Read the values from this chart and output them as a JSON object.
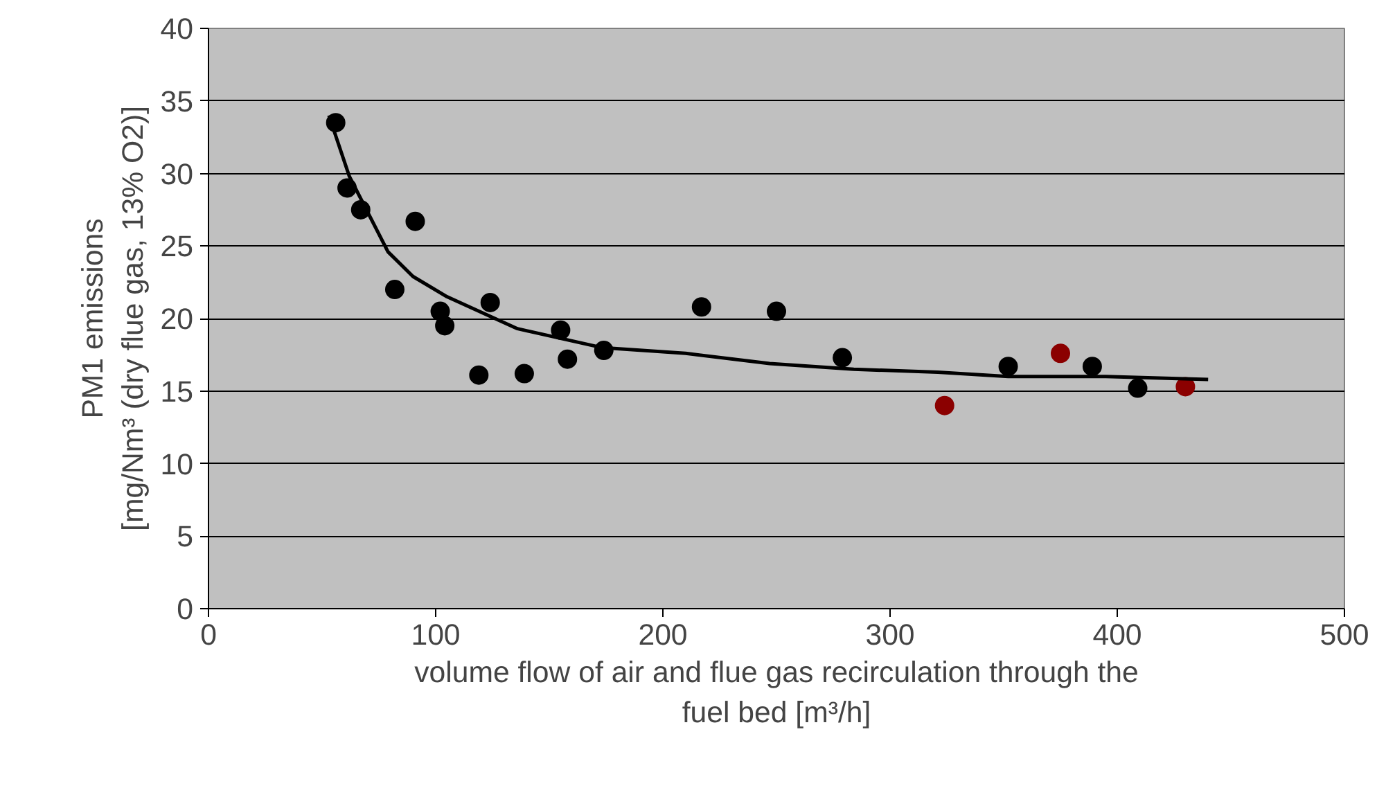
{
  "chart_data": {
    "type": "scatter",
    "xlabel": "volume flow of air and flue gas recirculation through the\nfuel bed [m³/h]",
    "ylabel": "PM1 emissions\n[mg/Nm³ (dry flue gas, 13% O2)]",
    "xlim": [
      0,
      500
    ],
    "ylim": [
      0,
      40
    ],
    "xticks": [
      0,
      100,
      200,
      300,
      400,
      500
    ],
    "yticks": [
      0,
      5,
      10,
      15,
      20,
      25,
      30,
      35,
      40
    ],
    "grid": "y",
    "series": [
      {
        "marker": "circle",
        "color": "#000000",
        "x": [
          56,
          61,
          67,
          82,
          91,
          102,
          104,
          124,
          119,
          139,
          155,
          158,
          174,
          217,
          250,
          279,
          352,
          389,
          409
        ],
        "values": [
          33.5,
          29.0,
          27.5,
          22.0,
          26.7,
          20.5,
          19.5,
          21.1,
          16.1,
          16.2,
          19.2,
          17.2,
          17.8,
          20.8,
          20.5,
          17.3,
          16.7,
          16.7,
          15.2
        ]
      },
      {
        "marker": "circle",
        "color": "#8b0000",
        "x": [
          324,
          375,
          430
        ],
        "values": [
          14.0,
          17.6,
          15.3
        ]
      },
      {
        "type": "line",
        "marker": "none",
        "color": "#000000",
        "x": [
          53,
          62,
          79,
          90,
          105,
          136,
          173,
          210,
          247,
          284,
          321,
          352,
          395,
          440
        ],
        "values": [
          34.0,
          29.8,
          24.6,
          22.9,
          21.5,
          19.3,
          18.0,
          17.6,
          16.9,
          16.5,
          16.3,
          16.0,
          16.0,
          15.8
        ]
      }
    ]
  }
}
